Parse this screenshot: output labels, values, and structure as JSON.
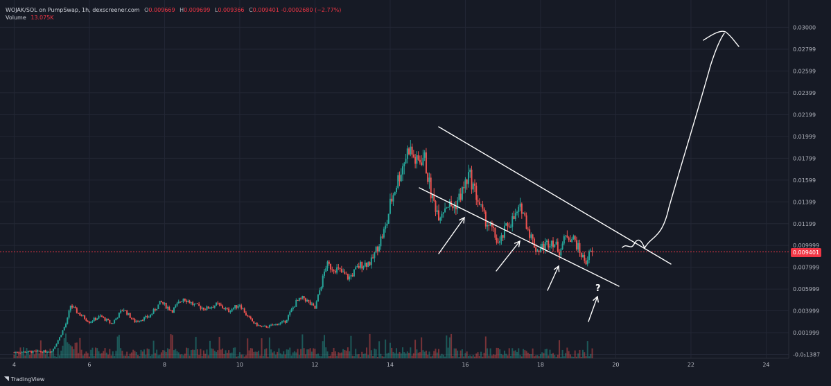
{
  "header": {
    "symbol": "WOJAK/SOL on PumpSwap, 1h, dexscreener.com",
    "o_label": "O",
    "o_value": "0.009669",
    "h_label": "H",
    "h_value": "0.009699",
    "l_label": "L",
    "l_value": "0.009366",
    "c_label": "C",
    "c_value": "0.009401",
    "change": "-0.0002680 (−2.77%)",
    "volume_label": "Volume",
    "volume_value": "13.075K"
  },
  "footer": {
    "brand": "TradingView"
  },
  "colors": {
    "background": "#161a25",
    "up": "#26a69a",
    "down": "#ef5350",
    "last_price": "#f23645",
    "drawing": "#ffffff",
    "grid": "#232735"
  },
  "chart_data": {
    "type": "candlestick",
    "title": "",
    "xlabel": "",
    "ylabel": "",
    "x_ticks": [
      "4",
      "6",
      "8",
      "10",
      "12",
      "14",
      "16",
      "18",
      "20",
      "22",
      "24"
    ],
    "y_ticks": [
      "0.03000",
      "0.02799",
      "0.02599",
      "0.02399",
      "0.02199",
      "0.01999",
      "0.01799",
      "0.01599",
      "0.01399",
      "0.01199",
      "0.009999",
      "0.007999",
      "0.005999",
      "0.003999",
      "0.001999",
      "-0.0₅1387"
    ],
    "last_price": "0.009401",
    "ylim": [
      -0.00035,
      0.0311
    ],
    "xlim": [
      3.9,
      24.6
    ],
    "grid": true,
    "series": [
      {
        "name": "Price",
        "keypoints_x": [
          4.0,
          5.0,
          5.2,
          5.4,
          5.5,
          5.7,
          6.0,
          6.3,
          6.6,
          6.9,
          7.2,
          7.6,
          7.9,
          8.2,
          8.5,
          8.8,
          9.1,
          9.4,
          9.7,
          10.0,
          10.2,
          10.4,
          10.6,
          10.8,
          11.0,
          11.2,
          11.5,
          11.7,
          12.0,
          12.3,
          12.6,
          12.9,
          13.2,
          13.5,
          13.7,
          13.9,
          14.0,
          14.2,
          14.5,
          14.7,
          14.9,
          15.1,
          15.3,
          15.5,
          15.7,
          15.9,
          16.1,
          16.3,
          16.5,
          16.7,
          16.9,
          17.1,
          17.3,
          17.5,
          17.7,
          17.9,
          18.1,
          18.3,
          18.5,
          18.7,
          18.9,
          19.1,
          19.2,
          19.3,
          19.4
        ],
        "keypoints_y": [
          0.0002,
          0.0003,
          0.0015,
          0.003,
          0.0045,
          0.0038,
          0.003,
          0.0035,
          0.0028,
          0.0042,
          0.003,
          0.0035,
          0.0048,
          0.004,
          0.0052,
          0.0045,
          0.0042,
          0.0046,
          0.004,
          0.0046,
          0.0035,
          0.0028,
          0.0025,
          0.0026,
          0.0028,
          0.003,
          0.0048,
          0.0052,
          0.0042,
          0.0082,
          0.0078,
          0.007,
          0.0082,
          0.0085,
          0.0102,
          0.0118,
          0.0138,
          0.016,
          0.019,
          0.0175,
          0.0182,
          0.0145,
          0.0128,
          0.0138,
          0.0135,
          0.0148,
          0.0165,
          0.0145,
          0.0125,
          0.0115,
          0.01,
          0.0118,
          0.0125,
          0.0135,
          0.0112,
          0.0095,
          0.01,
          0.0105,
          0.0095,
          0.011,
          0.0105,
          0.009,
          0.0085,
          0.0092,
          0.0094
        ]
      }
    ],
    "annotations": [
      "?"
    ]
  }
}
